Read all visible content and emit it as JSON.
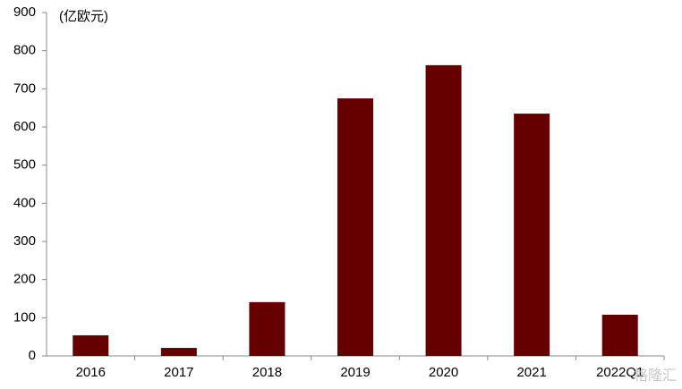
{
  "chart_data": {
    "type": "bar",
    "unit_label": "(亿欧元)",
    "categories": [
      "2016",
      "2017",
      "2018",
      "2019",
      "2020",
      "2021",
      "2022Q1"
    ],
    "values": [
      54,
      21,
      141,
      675,
      762,
      635,
      108
    ],
    "color": "#660000",
    "ylim": [
      0,
      900
    ],
    "yticks": [
      0,
      100,
      200,
      300,
      400,
      500,
      600,
      700,
      800,
      900
    ],
    "grid": false,
    "watermark": "格隆汇"
  }
}
